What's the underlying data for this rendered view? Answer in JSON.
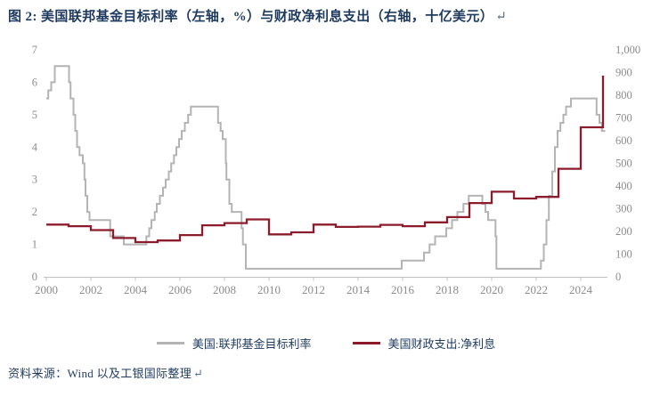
{
  "title": {
    "text": "图 2: 美国联邦基金目标利率（左轴，%）与财政净利息支出（右轴，十亿美元）",
    "return_mark": "↵"
  },
  "source": {
    "text": "资料来源：Wind 以及工银国际整理",
    "return_mark": "↵"
  },
  "legend": [
    {
      "name": "美国:联邦基金目标利率",
      "color": "#b4b4b4"
    },
    {
      "name": "美国财政支出:净利息",
      "color": "#8c1c2c"
    }
  ],
  "colors": {
    "gray_line": "#b4b4b4",
    "red_line": "#8c1c2c",
    "axis_line": "#c3c3c3",
    "axis_text": "#8c8c8c",
    "caption_text": "#1e3a5f"
  },
  "chart_data": {
    "type": "line",
    "title": "美国联邦基金目标利率（左轴，%）与财政净利息支出（右轴，十亿美元）",
    "grid": false,
    "legend_position": "bottom",
    "x_axis": {
      "min": 2000,
      "max": 2025,
      "tick_years": [
        2000,
        2002,
        2004,
        2006,
        2008,
        2010,
        2012,
        2014,
        2016,
        2018,
        2020,
        2022,
        2024
      ]
    },
    "left_axis": {
      "label": "%",
      "min": 0,
      "max": 7,
      "ticks": [
        0,
        1,
        2,
        3,
        4,
        5,
        6,
        7
      ]
    },
    "right_axis": {
      "label": "十亿美元",
      "min": 0,
      "max": 1000,
      "ticks": [
        0,
        100,
        200,
        300,
        400,
        500,
        600,
        700,
        800,
        900,
        1000
      ],
      "tick_labels": [
        "0",
        "100",
        "200",
        "300",
        "400",
        "500",
        "600",
        "700",
        "800",
        "900",
        "1,000"
      ]
    },
    "series": [
      {
        "name": "美国:联邦基金目标利率",
        "axis": "left",
        "style": "step-after",
        "points": [
          [
            2000.0,
            5.5
          ],
          [
            2000.09,
            5.75
          ],
          [
            2000.22,
            6.0
          ],
          [
            2000.38,
            6.5
          ],
          [
            2001.02,
            6.0
          ],
          [
            2001.09,
            5.5
          ],
          [
            2001.22,
            5.0
          ],
          [
            2001.3,
            4.5
          ],
          [
            2001.38,
            4.0
          ],
          [
            2001.49,
            3.75
          ],
          [
            2001.64,
            3.5
          ],
          [
            2001.71,
            3.0
          ],
          [
            2001.76,
            2.5
          ],
          [
            2001.84,
            2.0
          ],
          [
            2001.94,
            1.75
          ],
          [
            2002.87,
            1.25
          ],
          [
            2003.48,
            1.0
          ],
          [
            2004.49,
            1.25
          ],
          [
            2004.62,
            1.5
          ],
          [
            2004.72,
            1.75
          ],
          [
            2004.87,
            2.0
          ],
          [
            2004.96,
            2.25
          ],
          [
            2005.1,
            2.5
          ],
          [
            2005.24,
            2.75
          ],
          [
            2005.36,
            3.0
          ],
          [
            2005.5,
            3.25
          ],
          [
            2005.61,
            3.5
          ],
          [
            2005.73,
            3.75
          ],
          [
            2005.84,
            4.0
          ],
          [
            2005.96,
            4.25
          ],
          [
            2006.08,
            4.5
          ],
          [
            2006.22,
            4.75
          ],
          [
            2006.37,
            5.0
          ],
          [
            2006.49,
            5.25
          ],
          [
            2007.71,
            4.75
          ],
          [
            2007.83,
            4.5
          ],
          [
            2007.92,
            4.25
          ],
          [
            2008.06,
            3.5
          ],
          [
            2008.09,
            3.0
          ],
          [
            2008.22,
            2.25
          ],
          [
            2008.33,
            2.0
          ],
          [
            2008.77,
            1.5
          ],
          [
            2008.83,
            1.0
          ],
          [
            2008.96,
            0.25
          ],
          [
            2015.96,
            0.5
          ],
          [
            2016.96,
            0.75
          ],
          [
            2017.21,
            1.0
          ],
          [
            2017.46,
            1.25
          ],
          [
            2017.96,
            1.5
          ],
          [
            2018.22,
            1.75
          ],
          [
            2018.46,
            2.0
          ],
          [
            2018.73,
            2.25
          ],
          [
            2018.97,
            2.5
          ],
          [
            2019.58,
            2.25
          ],
          [
            2019.72,
            2.0
          ],
          [
            2019.84,
            1.75
          ],
          [
            2020.17,
            1.25
          ],
          [
            2020.21,
            0.25
          ],
          [
            2022.21,
            0.5
          ],
          [
            2022.34,
            1.0
          ],
          [
            2022.46,
            1.75
          ],
          [
            2022.57,
            2.5
          ],
          [
            2022.72,
            3.25
          ],
          [
            2022.84,
            4.0
          ],
          [
            2022.96,
            4.5
          ],
          [
            2023.09,
            4.75
          ],
          [
            2023.22,
            5.0
          ],
          [
            2023.34,
            5.25
          ],
          [
            2023.56,
            5.5
          ],
          [
            2024.71,
            5.0
          ],
          [
            2024.84,
            4.75
          ],
          [
            2024.95,
            4.5
          ]
        ],
        "x_end": 2025.1
      },
      {
        "name": "美国财政支出:净利息",
        "axis": "right",
        "style": "annual-steps",
        "note": "fiscal-year value drawn across the following calendar year",
        "years": [
          1999,
          2000,
          2001,
          2002,
          2003,
          2004,
          2005,
          2006,
          2007,
          2008,
          2009,
          2010,
          2011,
          2012,
          2013,
          2014,
          2015,
          2016,
          2017,
          2018,
          2019,
          2020,
          2021,
          2022,
          2023,
          2024
        ],
        "values": [
          230,
          223,
          206,
          171,
          153,
          160,
          184,
          227,
          237,
          253,
          187,
          196,
          230,
          220,
          221,
          229,
          223,
          240,
          263,
          325,
          375,
          345,
          352,
          476,
          659,
          882
        ],
        "x_end": 2025.05
      }
    ]
  }
}
